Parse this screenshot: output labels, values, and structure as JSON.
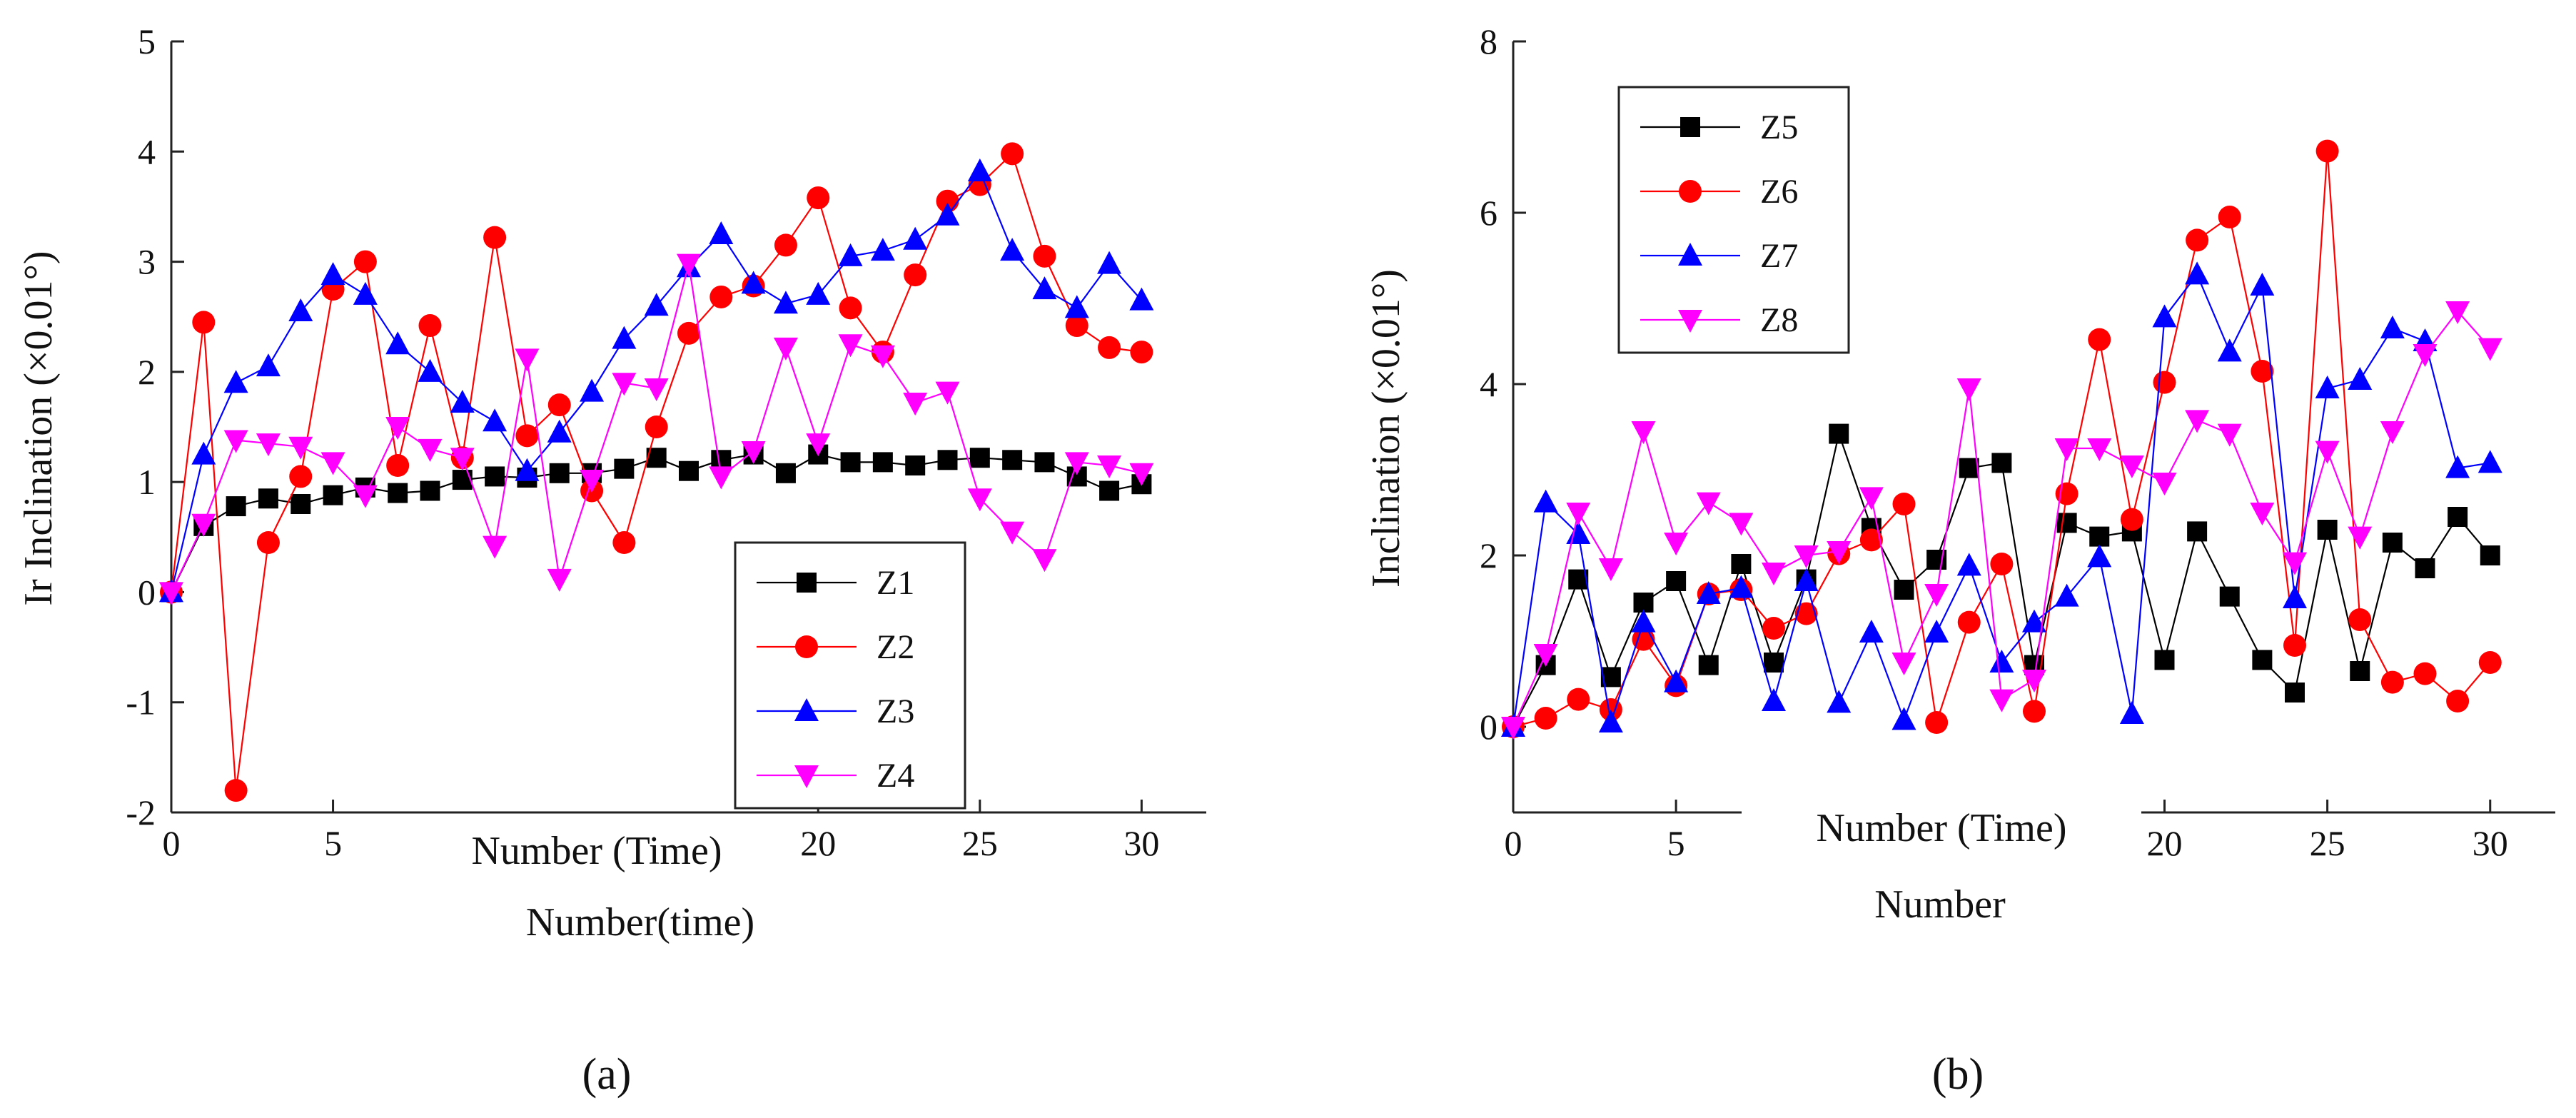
{
  "chart_data": [
    {
      "type": "line",
      "xlabel": "Number(time)",
      "xlabel_inner": "Number (Time)",
      "ylabel": "Ir Inclination (×0.01°)",
      "xlim": [
        0,
        32
      ],
      "ylim": [
        -2,
        5
      ],
      "xticks": [
        0,
        5,
        20,
        25,
        30
      ],
      "yticks": [
        -2,
        -1,
        0,
        1,
        2,
        3,
        4,
        5
      ],
      "grid": false,
      "legend_position": "bottom-right",
      "panel_label": "(a)",
      "series": [
        {
          "name": "Z1",
          "color": "#000000",
          "marker": "square",
          "x": [
            0,
            1,
            2,
            3,
            4,
            5,
            6,
            7,
            8,
            9,
            10,
            11,
            12,
            13,
            14,
            15,
            16,
            17,
            18,
            19,
            20,
            21,
            22,
            23,
            24,
            25,
            26,
            27,
            28,
            29,
            30
          ],
          "values": [
            0,
            0.6,
            0.78,
            0.85,
            0.8,
            0.88,
            0.95,
            0.9,
            0.92,
            1.02,
            1.05,
            1.04,
            1.08,
            1.08,
            1.12,
            1.22,
            1.1,
            1.2,
            1.25,
            1.08,
            1.25,
            1.18,
            1.18,
            1.15,
            1.2,
            1.22,
            1.2,
            1.18,
            1.05,
            0.92,
            0.98
          ]
        },
        {
          "name": "Z2",
          "color": "#ff0000",
          "marker": "circle",
          "x": [
            0,
            1,
            2,
            3,
            4,
            5,
            6,
            7,
            8,
            9,
            10,
            11,
            12,
            13,
            14,
            15,
            16,
            17,
            18,
            19,
            20,
            21,
            22,
            23,
            24,
            25,
            26,
            27,
            28,
            29,
            30
          ],
          "values": [
            0,
            2.45,
            -1.8,
            0.45,
            1.05,
            2.75,
            3.0,
            1.15,
            2.42,
            1.22,
            3.22,
            1.42,
            1.7,
            0.92,
            0.45,
            1.5,
            2.35,
            2.68,
            2.78,
            3.15,
            3.58,
            2.58,
            2.18,
            2.88,
            3.55,
            3.7,
            3.98,
            3.05,
            2.42,
            2.22,
            2.18
          ]
        },
        {
          "name": "Z3",
          "color": "#0000ff",
          "marker": "triangle-up",
          "x": [
            0,
            1,
            2,
            3,
            4,
            5,
            6,
            7,
            8,
            9,
            10,
            11,
            12,
            13,
            14,
            15,
            16,
            17,
            18,
            19,
            20,
            21,
            22,
            23,
            24,
            25,
            26,
            27,
            28,
            29,
            30
          ],
          "values": [
            0,
            1.25,
            1.9,
            2.05,
            2.55,
            2.88,
            2.7,
            2.25,
            2.0,
            1.72,
            1.55,
            1.1,
            1.45,
            1.82,
            2.3,
            2.6,
            2.95,
            3.25,
            2.8,
            2.62,
            2.7,
            3.05,
            3.1,
            3.2,
            3.42,
            3.82,
            3.1,
            2.75,
            2.58,
            2.98,
            2.65
          ]
        },
        {
          "name": "Z4",
          "color": "#ff00ff",
          "marker": "triangle-down",
          "x": [
            0,
            1,
            2,
            3,
            4,
            5,
            6,
            7,
            8,
            9,
            10,
            11,
            12,
            13,
            14,
            15,
            16,
            17,
            18,
            19,
            20,
            21,
            22,
            23,
            24,
            25,
            26,
            27,
            28,
            29,
            30
          ],
          "values": [
            0,
            0.62,
            1.38,
            1.35,
            1.32,
            1.18,
            0.88,
            1.5,
            1.3,
            1.22,
            0.42,
            2.12,
            0.12,
            1.02,
            1.9,
            1.85,
            2.98,
            1.05,
            1.28,
            2.22,
            1.35,
            2.25,
            2.15,
            1.72,
            1.82,
            0.85,
            0.55,
            0.3,
            1.18,
            1.15,
            1.08
          ]
        }
      ]
    },
    {
      "type": "line",
      "xlabel": "Number",
      "xlabel_inner": "Number (Time)",
      "ylabel": "Inclination (×0.01°)",
      "xlim": [
        0,
        32
      ],
      "ylim": [
        -1,
        8
      ],
      "xticks": [
        0,
        5,
        20,
        25,
        30
      ],
      "yticks": [
        0,
        2,
        4,
        6,
        8
      ],
      "grid": false,
      "legend_position": "top-left",
      "panel_label": "(b)",
      "series": [
        {
          "name": "Z5",
          "color": "#000000",
          "marker": "square",
          "x": [
            0,
            1,
            2,
            3,
            4,
            5,
            6,
            7,
            8,
            9,
            10,
            11,
            12,
            13,
            14,
            15,
            16,
            17,
            18,
            19,
            20,
            21,
            22,
            23,
            24,
            25,
            26,
            27,
            28,
            29,
            30
          ],
          "values": [
            0,
            0.72,
            1.72,
            0.58,
            1.45,
            1.7,
            0.72,
            1.9,
            0.75,
            1.72,
            3.42,
            2.32,
            1.6,
            1.95,
            3.02,
            3.08,
            0.72,
            2.38,
            2.22,
            2.28,
            0.78,
            2.28,
            1.52,
            0.78,
            0.4,
            2.3,
            0.65,
            2.15,
            1.85,
            2.45,
            2.0
          ]
        },
        {
          "name": "Z6",
          "color": "#ff0000",
          "marker": "circle",
          "x": [
            0,
            1,
            2,
            3,
            4,
            5,
            6,
            7,
            8,
            9,
            10,
            11,
            12,
            13,
            14,
            15,
            16,
            17,
            18,
            19,
            20,
            21,
            22,
            23,
            24,
            25,
            26,
            27,
            28,
            29,
            30
          ],
          "values": [
            0,
            0.1,
            0.32,
            0.2,
            1.02,
            0.48,
            1.55,
            1.6,
            1.15,
            1.32,
            2.02,
            2.18,
            2.6,
            0.05,
            1.22,
            1.9,
            0.18,
            2.72,
            4.52,
            2.42,
            4.02,
            5.68,
            5.95,
            4.15,
            0.95,
            6.72,
            1.25,
            0.52,
            0.62,
            0.3,
            0.75
          ]
        },
        {
          "name": "Z7",
          "color": "#0000ff",
          "marker": "triangle-up",
          "x": [
            0,
            1,
            2,
            3,
            4,
            5,
            6,
            7,
            8,
            9,
            10,
            11,
            12,
            13,
            14,
            15,
            16,
            17,
            18,
            19,
            20,
            21,
            22,
            23,
            24,
            25,
            26,
            27,
            28,
            29,
            30
          ],
          "values": [
            0,
            2.62,
            2.25,
            0.05,
            1.22,
            0.52,
            1.55,
            1.62,
            0.3,
            1.7,
            0.28,
            1.1,
            0.08,
            1.1,
            1.88,
            0.75,
            1.22,
            1.52,
            1.98,
            0.15,
            4.78,
            5.28,
            4.38,
            5.15,
            1.5,
            3.95,
            4.05,
            4.65,
            4.5,
            3.02,
            3.08
          ]
        },
        {
          "name": "Z8",
          "color": "#ff00ff",
          "marker": "triangle-down",
          "x": [
            0,
            1,
            2,
            3,
            4,
            5,
            6,
            7,
            8,
            9,
            10,
            11,
            12,
            13,
            14,
            15,
            16,
            17,
            18,
            19,
            20,
            21,
            22,
            23,
            24,
            25,
            26,
            27,
            28,
            29,
            30
          ],
          "values": [
            0,
            0.85,
            2.5,
            1.85,
            3.45,
            2.15,
            2.62,
            2.38,
            1.8,
            2.0,
            2.05,
            2.68,
            0.75,
            1.55,
            3.95,
            0.32,
            0.55,
            3.25,
            3.25,
            3.05,
            2.85,
            3.58,
            3.42,
            2.5,
            1.92,
            3.22,
            2.22,
            3.45,
            4.35,
            4.85,
            4.42
          ]
        }
      ]
    }
  ]
}
